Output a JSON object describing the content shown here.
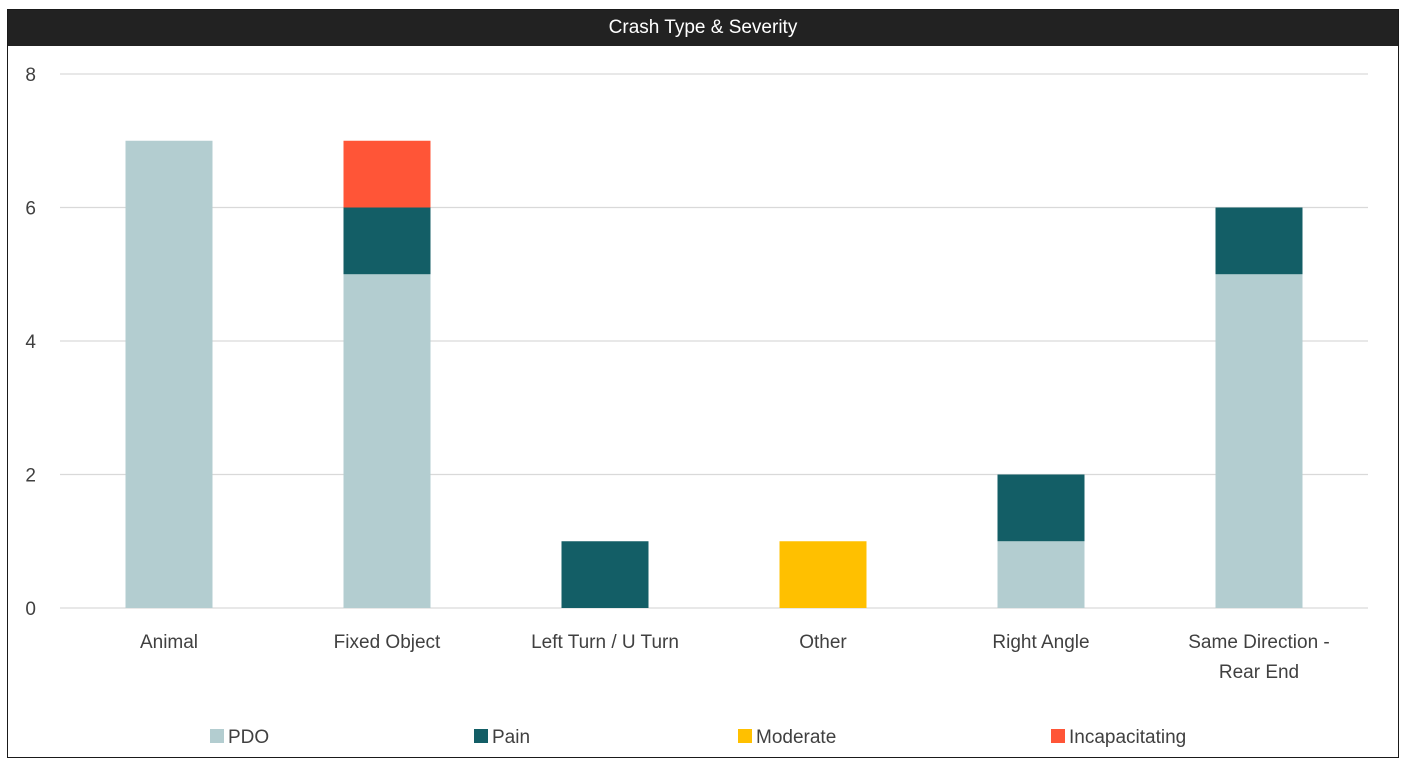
{
  "chart_data": {
    "type": "bar",
    "stacked": true,
    "title": "Crash Type & Severity",
    "xlabel": "",
    "ylabel": "",
    "ylim": [
      0,
      8
    ],
    "yticks": [
      "0",
      "2",
      "4",
      "6",
      "8"
    ],
    "grid": true,
    "legend_position": "bottom",
    "categories": [
      [
        "Animal"
      ],
      [
        "Fixed Object"
      ],
      [
        "Left Turn / U Turn"
      ],
      [
        "Other"
      ],
      [
        "Right Angle"
      ],
      [
        "Same Direction -",
        "Rear End"
      ]
    ],
    "series": [
      {
        "name": "PDO",
        "color": "#B3CDD0",
        "values": [
          7,
          5,
          0,
          0,
          1,
          5
        ]
      },
      {
        "name": "Pain",
        "color": "#135E66",
        "values": [
          0,
          1,
          1,
          0,
          1,
          1
        ]
      },
      {
        "name": "Moderate",
        "color": "#FFC000",
        "values": [
          0,
          0,
          0,
          1,
          0,
          0
        ]
      },
      {
        "name": "Incapacitating",
        "color": "#FF5537",
        "values": [
          0,
          1,
          0,
          0,
          0,
          0
        ]
      }
    ]
  }
}
